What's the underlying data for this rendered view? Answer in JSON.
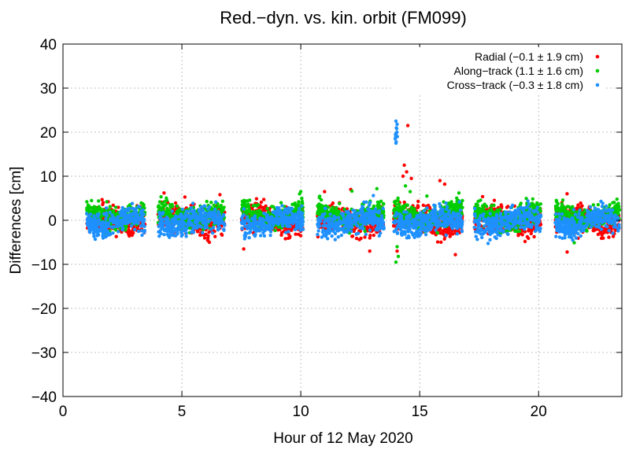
{
  "chart_data": {
    "type": "scatter",
    "title": "Red.−dyn. vs. kin. orbit (FM099)",
    "xlabel": "Hour of 12 May 2020",
    "ylabel": "Differences [cm]",
    "xlim": [
      0,
      23.5
    ],
    "ylim": [
      -40,
      40
    ],
    "xticks": [
      0,
      5,
      10,
      15,
      20
    ],
    "yticks": [
      40,
      30,
      20,
      10,
      0,
      -10,
      -20,
      -30,
      -40
    ],
    "xtick_labels": [
      "0",
      "5",
      "10",
      "15",
      "20"
    ],
    "ytick_labels": [
      "40",
      "30",
      "20",
      "10",
      "0",
      "−10",
      "−20",
      "−30",
      "−40"
    ],
    "grid": true,
    "legend_position": "top-right",
    "data_segments_hours": [
      [
        1.0,
        3.45
      ],
      [
        4.0,
        6.8
      ],
      [
        7.5,
        10.1
      ],
      [
        10.7,
        13.5
      ],
      [
        13.9,
        16.8
      ],
      [
        17.3,
        20.1
      ],
      [
        20.7,
        23.4
      ]
    ],
    "series": [
      {
        "name": "Radial (−0.1 ± 1.9 cm)",
        "color": "#ff0000",
        "mean_cm": -0.1,
        "std_cm": 1.9,
        "outliers": [
          {
            "x": 14.35,
            "y": 12.5
          },
          {
            "x": 14.5,
            "y": 21.5
          },
          {
            "x": 14.45,
            "y": 11.0
          },
          {
            "x": 14.3,
            "y": 10.0
          },
          {
            "x": 15.85,
            "y": 9.0
          },
          {
            "x": 16.05,
            "y": 8.2
          },
          {
            "x": 4.25,
            "y": 6.2
          },
          {
            "x": 6.6,
            "y": 5.8
          },
          {
            "x": 11.0,
            "y": 6.5
          },
          {
            "x": 12.1,
            "y": 7.0
          },
          {
            "x": 14.65,
            "y": 9.5
          },
          {
            "x": 7.6,
            "y": -6.5
          },
          {
            "x": 12.9,
            "y": -7.0
          },
          {
            "x": 16.5,
            "y": -7.8
          },
          {
            "x": 21.2,
            "y": -7.2
          },
          {
            "x": 14.05,
            "y": -7.0
          }
        ]
      },
      {
        "name": "Along−track (1.1 ± 1.6 cm)",
        "color": "#00cc00",
        "mean_cm": 1.1,
        "std_cm": 1.6,
        "outliers": [
          {
            "x": 14.0,
            "y": -9.5
          },
          {
            "x": 14.1,
            "y": -8.2
          },
          {
            "x": 14.05,
            "y": -6.0
          },
          {
            "x": 14.4,
            "y": 7.8
          },
          {
            "x": 10.0,
            "y": 6.5
          },
          {
            "x": 9.95,
            "y": 6.0
          },
          {
            "x": 12.15,
            "y": 6.6
          },
          {
            "x": 16.65,
            "y": 6.2
          },
          {
            "x": 15.3,
            "y": 5.5
          },
          {
            "x": 14.6,
            "y": 6.5
          }
        ]
      },
      {
        "name": "Cross−track (−0.3 ± 1.8 cm)",
        "color": "#1e90ff",
        "mean_cm": -0.3,
        "std_cm": 1.8,
        "outliers": [
          {
            "x": 14.0,
            "y": 22.5
          },
          {
            "x": 14.02,
            "y": 21.0
          },
          {
            "x": 13.98,
            "y": 19.5
          },
          {
            "x": 14.04,
            "y": 20.0
          },
          {
            "x": 13.97,
            "y": 18.5
          },
          {
            "x": 14.06,
            "y": 19.0
          },
          {
            "x": 14.01,
            "y": 17.8
          },
          {
            "x": 14.03,
            "y": 20.8
          },
          {
            "x": 13.99,
            "y": 18.9
          },
          {
            "x": 14.05,
            "y": 21.8
          },
          {
            "x": 14.0,
            "y": 17.5
          },
          {
            "x": 14.02,
            "y": 19.8
          }
        ]
      }
    ]
  }
}
